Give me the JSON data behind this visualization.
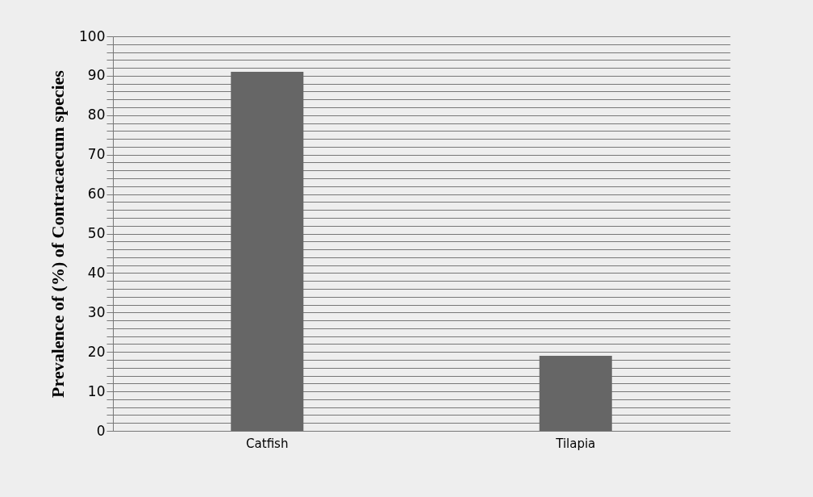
{
  "chart_data": {
    "type": "bar",
    "ylabel": "Prevalence of (%) of Contracaecum species",
    "categories": [
      "Catfish",
      "Tilapia"
    ],
    "values": [
      91,
      19
    ],
    "color": "#666666",
    "ylim": [
      0,
      100
    ],
    "yticks": [
      0,
      {
        "value": 2,
        "label": null
      },
      {
        "value": 4,
        "label": null
      },
      {
        "value": 6,
        "label": null
      },
      {
        "value": 8,
        "label": null
      },
      10,
      {
        "value": 12,
        "label": null
      },
      {
        "value": 14,
        "label": null
      },
      {
        "value": 16,
        "label": null
      },
      {
        "value": 18,
        "label": null
      },
      20,
      {
        "value": 22,
        "label": null
      },
      {
        "value": 24,
        "label": null
      },
      {
        "value": 26,
        "label": null
      },
      {
        "value": 28,
        "label": null
      },
      30,
      {
        "value": 32,
        "label": null
      },
      {
        "value": 34,
        "label": null
      },
      {
        "value": 36,
        "label": null
      },
      {
        "value": 38,
        "label": null
      },
      40,
      {
        "value": 42,
        "label": null
      },
      {
        "value": 44,
        "label": null
      },
      {
        "value": 46,
        "label": null
      },
      {
        "value": 48,
        "label": null
      },
      50,
      {
        "value": 52,
        "label": null
      },
      {
        "value": 54,
        "label": null
      },
      {
        "value": 56,
        "label": null
      },
      {
        "value": 58,
        "label": null
      },
      60,
      {
        "value": 62,
        "label": null
      },
      {
        "value": 64,
        "label": null
      },
      {
        "value": 66,
        "label": null
      },
      {
        "value": 68,
        "label": null
      },
      70,
      {
        "value": 72,
        "label": null
      },
      {
        "value": 74,
        "label": null
      },
      {
        "value": 76,
        "label": null
      },
      {
        "value": 78,
        "label": null
      },
      80,
      {
        "value": 82,
        "label": null
      },
      {
        "value": 84,
        "label": null
      },
      {
        "value": 86,
        "label": null
      },
      {
        "value": 88,
        "label": null
      },
      90,
      {
        "value": 92,
        "label": null
      },
      {
        "value": 94,
        "label": null
      },
      {
        "value": 96,
        "label": null
      },
      {
        "value": 98,
        "label": null
      },
      100
    ],
    "grid": true
  }
}
